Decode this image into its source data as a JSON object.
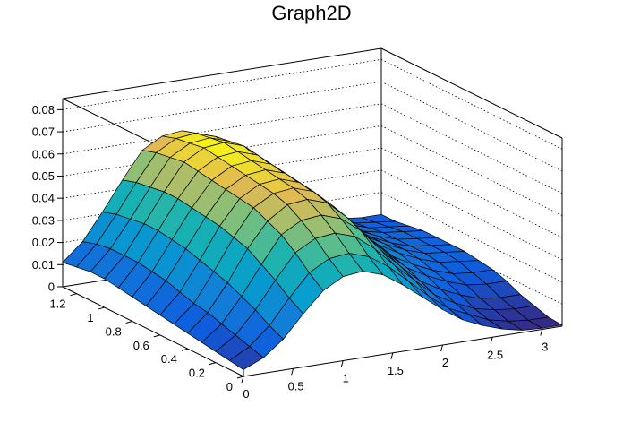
{
  "chart_data": {
    "type": "surface",
    "title": "Graph2D",
    "xlabel": "",
    "ylabel": "",
    "zlabel": "",
    "xlim": [
      0,
      3.2
    ],
    "ylim": [
      0,
      1.3
    ],
    "zlim": [
      0,
      0.085
    ],
    "x_ticks": [
      "0",
      "0.5",
      "1",
      "1.5",
      "2",
      "2.5",
      "3"
    ],
    "y_ticks": [
      "0",
      "0.2",
      "0.4",
      "0.6",
      "0.8",
      "1",
      "1.2"
    ],
    "z_ticks": [
      "0",
      "0.01",
      "0.02",
      "0.03",
      "0.04",
      "0.05",
      "0.06",
      "0.07",
      "0.08"
    ],
    "grid": true,
    "grid_x": [
      0,
      0.2,
      0.4,
      0.6,
      0.8,
      1.0,
      1.2,
      1.4,
      1.6,
      1.8,
      2.0,
      2.2,
      2.4,
      2.6,
      2.8,
      3.0,
      3.2
    ],
    "grid_y": [
      0,
      0.1,
      0.2,
      0.3,
      0.4,
      0.5,
      0.6,
      0.7,
      0.8,
      0.9,
      1.0,
      1.1,
      1.2,
      1.3
    ],
    "z": [
      [
        0.003,
        0.007,
        0.014,
        0.024,
        0.033,
        0.038,
        0.039,
        0.036,
        0.03,
        0.023,
        0.016,
        0.01,
        0.006,
        0.003,
        0.001,
        0.0005,
        0.0005
      ],
      [
        0.004,
        0.009,
        0.017,
        0.028,
        0.038,
        0.043,
        0.044,
        0.041,
        0.035,
        0.027,
        0.019,
        0.012,
        0.008,
        0.004,
        0.002,
        0.001,
        0.001
      ],
      [
        0.005,
        0.011,
        0.021,
        0.033,
        0.044,
        0.049,
        0.05,
        0.047,
        0.04,
        0.031,
        0.023,
        0.015,
        0.01,
        0.006,
        0.004,
        0.003,
        0.003
      ],
      [
        0.006,
        0.013,
        0.024,
        0.037,
        0.049,
        0.054,
        0.055,
        0.052,
        0.045,
        0.035,
        0.026,
        0.018,
        0.013,
        0.009,
        0.006,
        0.005,
        0.005
      ],
      [
        0.007,
        0.015,
        0.027,
        0.041,
        0.052,
        0.058,
        0.059,
        0.056,
        0.048,
        0.038,
        0.029,
        0.021,
        0.016,
        0.012,
        0.009,
        0.008,
        0.008
      ],
      [
        0.008,
        0.016,
        0.029,
        0.043,
        0.055,
        0.06,
        0.061,
        0.058,
        0.05,
        0.04,
        0.031,
        0.023,
        0.018,
        0.014,
        0.011,
        0.01,
        0.01
      ],
      [
        0.009,
        0.018,
        0.031,
        0.045,
        0.056,
        0.061,
        0.062,
        0.059,
        0.051,
        0.041,
        0.032,
        0.025,
        0.02,
        0.016,
        0.013,
        0.012,
        0.011
      ],
      [
        0.01,
        0.02,
        0.033,
        0.046,
        0.057,
        0.062,
        0.063,
        0.06,
        0.052,
        0.042,
        0.033,
        0.026,
        0.021,
        0.017,
        0.014,
        0.013,
        0.012
      ],
      [
        0.011,
        0.021,
        0.034,
        0.047,
        0.058,
        0.063,
        0.064,
        0.061,
        0.053,
        0.042,
        0.033,
        0.026,
        0.021,
        0.017,
        0.014,
        0.013,
        0.012
      ],
      [
        0.012,
        0.022,
        0.035,
        0.048,
        0.059,
        0.064,
        0.065,
        0.062,
        0.054,
        0.043,
        0.034,
        0.026,
        0.021,
        0.017,
        0.014,
        0.013,
        0.012
      ],
      [
        0.013,
        0.022,
        0.035,
        0.048,
        0.06,
        0.065,
        0.066,
        0.063,
        0.054,
        0.043,
        0.033,
        0.025,
        0.02,
        0.016,
        0.014,
        0.013,
        0.012
      ],
      [
        0.013,
        0.022,
        0.034,
        0.047,
        0.059,
        0.064,
        0.065,
        0.062,
        0.053,
        0.042,
        0.032,
        0.024,
        0.019,
        0.016,
        0.013,
        0.012,
        0.011
      ],
      [
        0.012,
        0.021,
        0.033,
        0.046,
        0.058,
        0.063,
        0.064,
        0.061,
        0.052,
        0.041,
        0.031,
        0.023,
        0.018,
        0.015,
        0.012,
        0.011,
        0.01
      ],
      [
        0.011,
        0.019,
        0.031,
        0.044,
        0.056,
        0.061,
        0.062,
        0.059,
        0.05,
        0.039,
        0.029,
        0.021,
        0.017,
        0.014,
        0.011,
        0.01,
        0.01
      ]
    ]
  }
}
